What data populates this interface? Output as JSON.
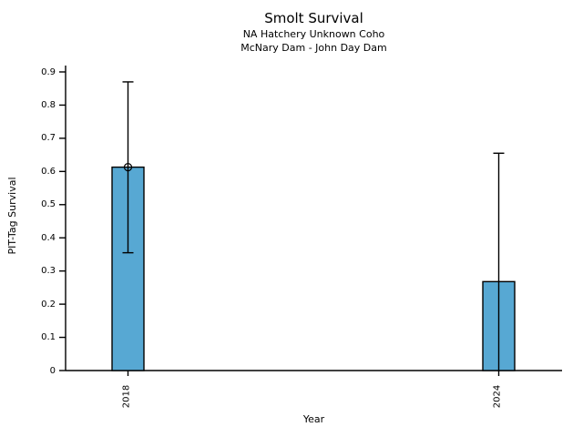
{
  "chart_data": {
    "type": "bar",
    "title": "Smolt Survival",
    "subtitle": [
      "NA Hatchery Unknown Coho",
      "McNary Dam - John Day Dam"
    ],
    "xlabel": "Year",
    "ylabel": "PIT-Tag Survival",
    "categories": [
      "2018",
      "2024"
    ],
    "values": [
      0.613,
      0.268
    ],
    "error_low": [
      0.355,
      0
    ],
    "error_high": [
      0.87,
      0.655
    ],
    "point_marker_on_bar": [
      true,
      false
    ],
    "ylim": [
      0,
      0.9
    ],
    "ytick_labels": [
      "0",
      "0.1",
      "0.2",
      "0.3",
      "0.4",
      "0.5",
      "0.6",
      "0.7",
      "0.8",
      "0.9"
    ],
    "grid": false,
    "legend": "none",
    "bar_color": "#57A8D3",
    "bar_edge_color": "#000000",
    "errorbar_color": "#000000",
    "text_color": "#000000",
    "background_color": "#FFFFFF",
    "x_tick_label_rotation_deg": 90
  }
}
